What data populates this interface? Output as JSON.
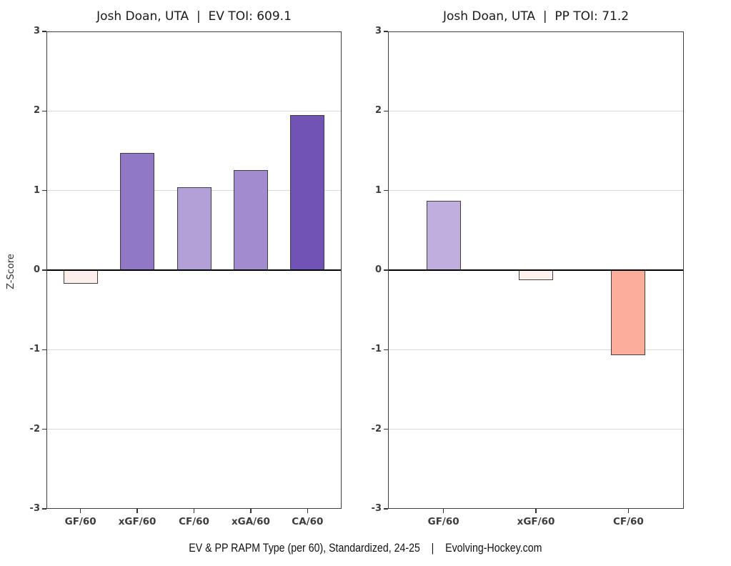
{
  "page": {
    "background": "#ffffff",
    "caption": "EV & PP RAPM Type (per 60), Standardized, 24-25    |    Evolving-Hockey.com"
  },
  "player": {
    "name": "Josh Doan",
    "team": "UTA",
    "ev_toi": "609.1",
    "pp_toi": "71.2",
    "season": "24-25"
  },
  "chart_data": [
    {
      "type": "bar",
      "panel": "even-strength",
      "title": "Josh Doan, UTA  |  EV TOI: 609.1",
      "ylabel": "Z-Score",
      "categories": [
        "GF/60",
        "xGF/60",
        "CF/60",
        "xGA/60",
        "CA/60"
      ],
      "values": [
        -0.17,
        1.47,
        1.04,
        1.26,
        1.95
      ],
      "bar_colors": [
        "#fceeea",
        "#9078c6",
        "#b2a1d7",
        "#a28ccf",
        "#7152b5"
      ],
      "ylim": [
        -3,
        3
      ],
      "yticks": [
        3,
        2,
        1,
        0,
        -1,
        -2,
        -3
      ],
      "grid": {
        "horizontal_major": true,
        "color": "#d9d9d9"
      },
      "zero_line_color": "#000000",
      "bar_outline_color": "#3f3f3f",
      "legend": "none"
    },
    {
      "type": "bar",
      "panel": "power-play",
      "title": "Josh Doan, UTA  |  PP TOI: 71.2",
      "ylabel": "",
      "categories": [
        "GF/60",
        "xGF/60",
        "CF/60"
      ],
      "values": [
        0.87,
        -0.13,
        -1.07
      ],
      "bar_colors": [
        "#c0aede",
        "#fdf2ee",
        "#fcae9a"
      ],
      "ylim": [
        -3,
        3
      ],
      "yticks": [
        3,
        2,
        1,
        0,
        -1,
        -2,
        -3
      ],
      "grid": {
        "horizontal_major": true,
        "color": "#d9d9d9"
      },
      "zero_line_color": "#000000",
      "bar_outline_color": "#3f3f3f",
      "legend": "none"
    }
  ]
}
